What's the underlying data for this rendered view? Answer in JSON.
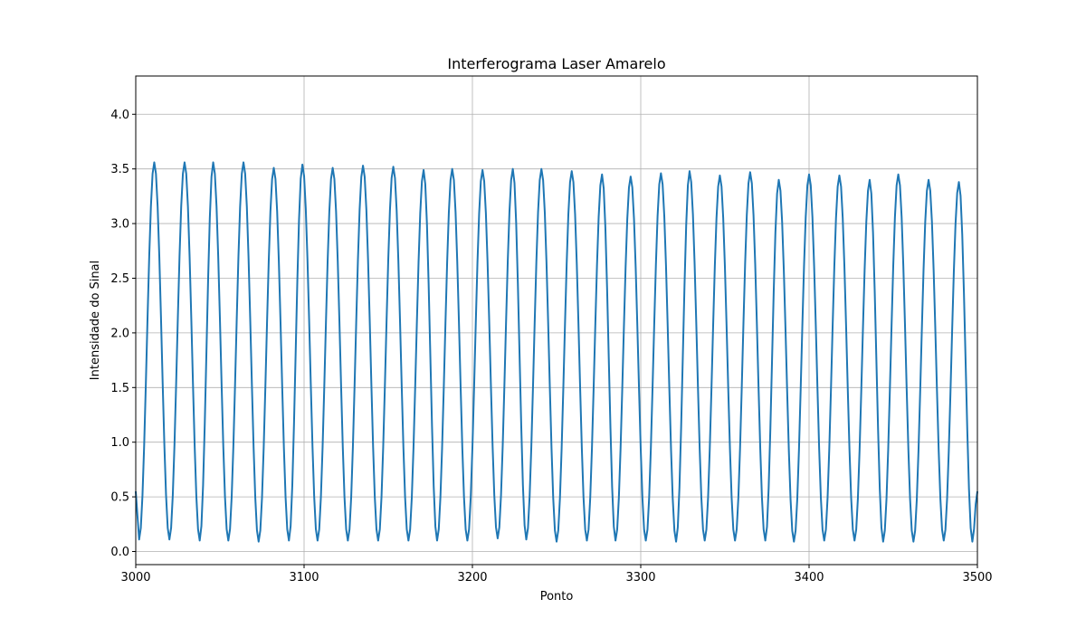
{
  "chart_data": {
    "type": "line",
    "title": "Interferograma Laser Amarelo",
    "xlabel": "Ponto",
    "ylabel": "Intensidade do Sinal",
    "xlim": [
      3000,
      3500
    ],
    "ylim": [
      -0.12,
      4.35
    ],
    "grid": true,
    "x_ticks": [
      3000,
      3100,
      3200,
      3300,
      3400,
      3500
    ],
    "x_tick_labels": [
      "3000",
      "3100",
      "3200",
      "3300",
      "3400",
      "3500"
    ],
    "y_ticks": [
      0.0,
      0.5,
      1.0,
      1.5,
      2.0,
      2.5,
      3.0,
      3.5,
      4.0
    ],
    "y_tick_labels": [
      "0.0",
      "0.5",
      "1.0",
      "1.5",
      "2.0",
      "2.5",
      "3.0",
      "3.5",
      "4.0"
    ],
    "series_color": "#1f77b4",
    "series": [
      {
        "x_start": 3000,
        "x_step": 1,
        "peaks": [
          {
            "x": 3011,
            "y": 3.56
          },
          {
            "x": 3029,
            "y": 3.56
          },
          {
            "x": 3046,
            "y": 3.56
          },
          {
            "x": 3064,
            "y": 3.56
          },
          {
            "x": 3082,
            "y": 3.51
          },
          {
            "x": 3099,
            "y": 3.54
          },
          {
            "x": 3117,
            "y": 3.51
          },
          {
            "x": 3135,
            "y": 3.53
          },
          {
            "x": 3153,
            "y": 3.52
          },
          {
            "x": 3171,
            "y": 3.49
          },
          {
            "x": 3188,
            "y": 3.5
          },
          {
            "x": 3206,
            "y": 3.49
          },
          {
            "x": 3224,
            "y": 3.5
          },
          {
            "x": 3241,
            "y": 3.5
          },
          {
            "x": 3259,
            "y": 3.48
          },
          {
            "x": 3277,
            "y": 3.45
          },
          {
            "x": 3294,
            "y": 3.43
          },
          {
            "x": 3312,
            "y": 3.46
          },
          {
            "x": 3329,
            "y": 3.48
          },
          {
            "x": 3347,
            "y": 3.44
          },
          {
            "x": 3365,
            "y": 3.47
          },
          {
            "x": 3382,
            "y": 3.4
          },
          {
            "x": 3400,
            "y": 3.45
          },
          {
            "x": 3418,
            "y": 3.44
          },
          {
            "x": 3436,
            "y": 3.4
          },
          {
            "x": 3453,
            "y": 3.45
          },
          {
            "x": 3471,
            "y": 3.4
          },
          {
            "x": 3489,
            "y": 3.38
          }
        ],
        "troughs": [
          {
            "x": 3002,
            "y": 0.11
          },
          {
            "x": 3020,
            "y": 0.11
          },
          {
            "x": 3038,
            "y": 0.1
          },
          {
            "x": 3055,
            "y": 0.1
          },
          {
            "x": 3073,
            "y": 0.09
          },
          {
            "x": 3091,
            "y": 0.1
          },
          {
            "x": 3108,
            "y": 0.1
          },
          {
            "x": 3126,
            "y": 0.1
          },
          {
            "x": 3144,
            "y": 0.1
          },
          {
            "x": 3162,
            "y": 0.1
          },
          {
            "x": 3179,
            "y": 0.1
          },
          {
            "x": 3197,
            "y": 0.1
          },
          {
            "x": 3215,
            "y": 0.12
          },
          {
            "x": 3232,
            "y": 0.11
          },
          {
            "x": 3250,
            "y": 0.09
          },
          {
            "x": 3268,
            "y": 0.1
          },
          {
            "x": 3285,
            "y": 0.1
          },
          {
            "x": 3303,
            "y": 0.1
          },
          {
            "x": 3321,
            "y": 0.09
          },
          {
            "x": 3338,
            "y": 0.1
          },
          {
            "x": 3356,
            "y": 0.1
          },
          {
            "x": 3374,
            "y": 0.1
          },
          {
            "x": 3391,
            "y": 0.09
          },
          {
            "x": 3409,
            "y": 0.1
          },
          {
            "x": 3427,
            "y": 0.1
          },
          {
            "x": 3444,
            "y": 0.09
          },
          {
            "x": 3462,
            "y": 0.09
          },
          {
            "x": 3480,
            "y": 0.1
          },
          {
            "x": 3497,
            "y": 0.09
          }
        ],
        "end_value": 0.55
      }
    ]
  }
}
